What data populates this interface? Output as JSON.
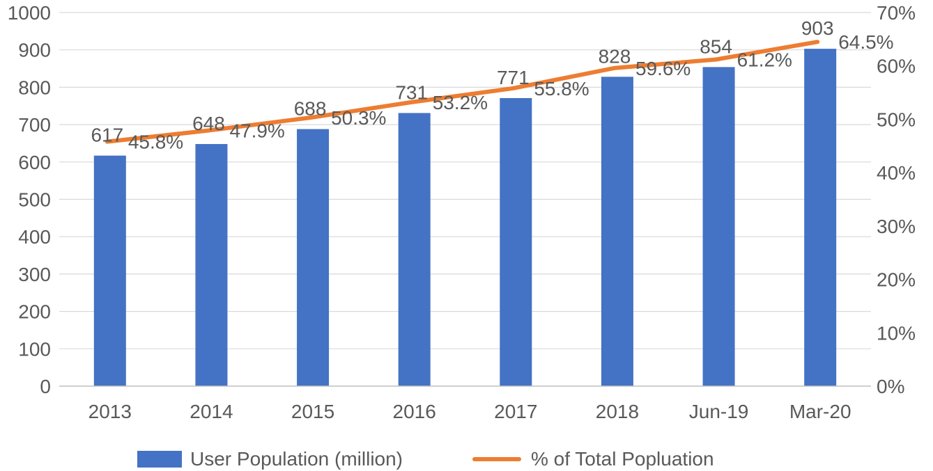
{
  "chart_data": {
    "type": "bar",
    "categories": [
      "2013",
      "2014",
      "2015",
      "2016",
      "2017",
      "2018",
      "Jun-19",
      "Mar-20"
    ],
    "series": [
      {
        "name": "User Population (million)",
        "type": "bar",
        "axis": "left",
        "values": [
          617,
          648,
          688,
          731,
          771,
          828,
          854,
          903
        ],
        "labels": [
          "617",
          "648",
          "688",
          "731",
          "771",
          "828",
          "854",
          "903"
        ],
        "color": "#4472C4"
      },
      {
        "name": "% of Total Popluation",
        "type": "line",
        "axis": "right",
        "values": [
          45.8,
          47.9,
          50.3,
          53.2,
          55.8,
          59.6,
          61.2,
          64.5
        ],
        "labels": [
          "45.8%",
          "47.9%",
          "50.3%",
          "53.2%",
          "55.8%",
          "59.6%",
          "61.2%",
          "64.5%"
        ],
        "color": "#ED7D31"
      }
    ],
    "y_left": {
      "min": 0,
      "max": 1000,
      "ticks": [
        "0",
        "100",
        "200",
        "300",
        "400",
        "500",
        "600",
        "700",
        "800",
        "900",
        "1000"
      ]
    },
    "y_right": {
      "min": 0,
      "max": 70,
      "ticks": [
        "0%",
        "10%",
        "20%",
        "30%",
        "40%",
        "50%",
        "60%",
        "70%"
      ]
    },
    "grid": true,
    "legend_position": "bottom",
    "legend": [
      "User Population (million)",
      "% of Total Popluation"
    ],
    "gridline_color": "#D9D9D9",
    "axis_line_color": "#BFBFBF"
  }
}
